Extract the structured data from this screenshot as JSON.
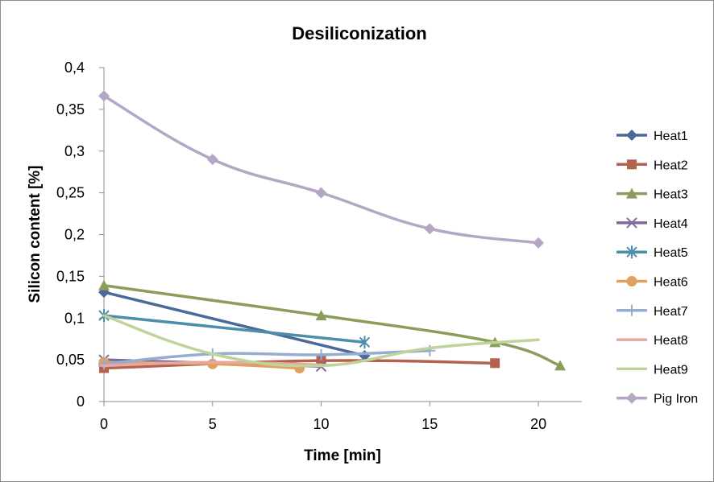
{
  "chart_data": {
    "type": "line",
    "title": "Desiliconization",
    "xlabel": "Time [min]",
    "ylabel": "Silicon content [%]",
    "xlim": [
      0,
      22
    ],
    "ylim": [
      0,
      0.4
    ],
    "x_ticks": [
      0,
      5,
      10,
      15,
      20
    ],
    "x_tick_labels": [
      "0",
      "5",
      "10",
      "15",
      "20"
    ],
    "y_ticks": [
      0,
      0.05,
      0.1,
      0.15,
      0.2,
      0.25,
      0.3,
      0.35,
      0.4
    ],
    "y_tick_labels": [
      "0",
      "0,05",
      "0,1",
      "0,15",
      "0,2",
      "0,25",
      "0,3",
      "0,35",
      "0,4"
    ],
    "grid": false,
    "legend_position": "right",
    "series": [
      {
        "name": "Heat1",
        "color": "#4a6a9a",
        "marker": "diamond",
        "x": [
          0,
          12
        ],
        "y": [
          0.131,
          0.055
        ]
      },
      {
        "name": "Heat2",
        "color": "#b4614f",
        "marker": "square",
        "x": [
          0,
          10,
          18
        ],
        "y": [
          0.04,
          0.049,
          0.046
        ]
      },
      {
        "name": "Heat3",
        "color": "#8b9d5b",
        "marker": "triangle",
        "x": [
          0,
          10,
          18,
          21
        ],
        "y": [
          0.139,
          0.103,
          0.071,
          0.043
        ]
      },
      {
        "name": "Heat4",
        "color": "#7d6b96",
        "marker": "x",
        "x": [
          0,
          10
        ],
        "y": [
          0.05,
          0.042
        ]
      },
      {
        "name": "Heat5",
        "color": "#4e8eab",
        "marker": "star",
        "x": [
          0,
          12
        ],
        "y": [
          0.103,
          0.071
        ]
      },
      {
        "name": "Heat6",
        "color": "#e0a060",
        "marker": "circle",
        "x": [
          0,
          5,
          9
        ],
        "y": [
          0.047,
          0.045,
          0.04
        ]
      },
      {
        "name": "Heat7",
        "color": "#96acd0",
        "marker": "plus",
        "x": [
          0,
          5,
          10,
          15
        ],
        "y": [
          0.045,
          0.057,
          0.056,
          0.061
        ]
      },
      {
        "name": "Heat8",
        "color": "#e6a8a0",
        "marker": "dash",
        "x": [
          0,
          5,
          10
        ],
        "y": [
          0.043,
          0.047,
          0.044
        ]
      },
      {
        "name": "Heat9",
        "color": "#bfd39a",
        "marker": "none",
        "x": [
          0,
          5,
          10,
          15,
          20
        ],
        "y": [
          0.103,
          0.057,
          0.043,
          0.064,
          0.074
        ]
      },
      {
        "name": "Pig Iron",
        "color": "#b4a7c6",
        "marker": "diamond",
        "x": [
          0,
          5,
          10,
          15,
          20
        ],
        "y": [
          0.366,
          0.29,
          0.25,
          0.207,
          0.19
        ]
      }
    ]
  }
}
